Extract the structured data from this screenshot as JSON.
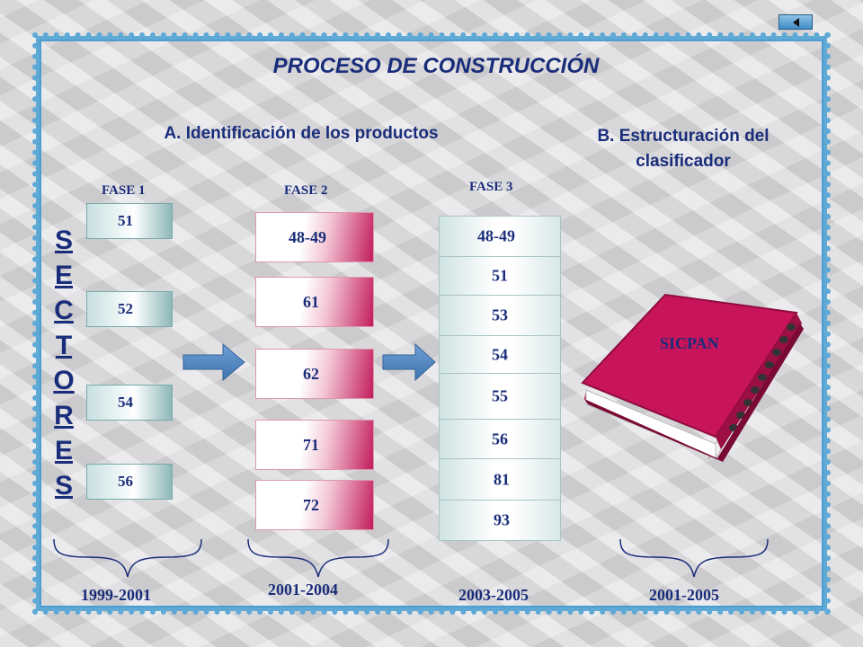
{
  "title": "PROCESO DE CONSTRUCCIÓN",
  "section_a": "A. Identificación de los productos",
  "section_b_line1": "B. Estructuración del",
  "section_b_line2": "clasificador",
  "sectores_label": [
    "S",
    "E",
    "C",
    "T",
    "O",
    "R",
    "E",
    "S"
  ],
  "fase1": {
    "label": "FASE 1",
    "items": [
      "51",
      "52",
      "54",
      "56"
    ],
    "period": "1999-2001"
  },
  "fase2": {
    "label": "FASE 2",
    "items": [
      "48-49",
      "61",
      "62",
      "71",
      "72"
    ],
    "period": "2001-2004"
  },
  "fase3": {
    "label": "FASE 3",
    "items": [
      "48-49",
      "51",
      "53",
      "54",
      "55",
      "56",
      "81",
      "93"
    ],
    "period": "2003-2005"
  },
  "book": {
    "label": "SICPAN",
    "period": "2001-2005"
  },
  "colors": {
    "text": "#1a2d7a",
    "frame": "#5fa9d6",
    "book": "#c8145a",
    "arrow": "#4f86c0"
  },
  "icons": {
    "back": "triangle-left-icon",
    "arrow": "right-arrow-icon",
    "book": "book-icon"
  }
}
